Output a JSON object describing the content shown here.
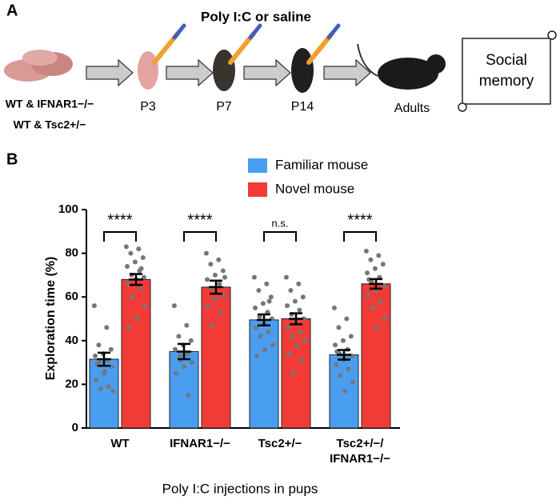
{
  "panel_a": {
    "label": "A",
    "title": "Poly I:C or saline",
    "genotypes": [
      "WT & IFNAR1−/−",
      "WT & Tsc2+/−"
    ],
    "stages": [
      "P3",
      "P7",
      "P14",
      "Adults"
    ],
    "outcome": "Social memory"
  },
  "chart_data": {
    "type": "bar",
    "panel_label": "B",
    "ylabel": "Exploration time (%)",
    "xlabel": "Poly I:C injections in pups",
    "categories": [
      "WT",
      "IFNAR1−/−",
      "Tsc2+/−",
      "Tsc2+/−/\nIFNAR1−/−"
    ],
    "significance": [
      "****",
      "****",
      "n.s.",
      "****"
    ],
    "ylim": [
      0,
      100
    ],
    "yticks": [
      0,
      20,
      40,
      60,
      80,
      100
    ],
    "grid": false,
    "legend": "top-right",
    "series": [
      {
        "name": "Familiar mouse",
        "color": "#4a9ef2",
        "values": [
          31.5,
          35,
          49.5,
          33.5
        ],
        "errors": [
          3,
          3.5,
          2.5,
          2.2
        ],
        "points": [
          [
            56,
            46,
            38,
            36,
            34,
            33,
            31,
            30,
            28,
            25,
            22,
            19,
            18,
            17,
            26,
            29
          ],
          [
            56,
            47,
            42,
            40,
            38,
            36,
            34,
            33,
            30,
            28,
            25,
            15,
            31
          ],
          [
            69,
            66,
            63,
            60,
            57,
            55,
            53,
            51,
            50,
            48,
            46,
            44,
            42,
            38,
            36,
            33,
            58
          ],
          [
            55,
            50,
            46,
            42,
            40,
            38,
            36,
            34,
            33,
            31,
            29,
            27,
            24,
            21,
            17,
            35
          ]
        ]
      },
      {
        "name": "Novel mouse",
        "color": "#f23a36",
        "values": [
          68,
          64.5,
          50,
          66
        ],
        "errors": [
          2.5,
          3,
          2.5,
          2.2
        ],
        "points": [
          [
            83,
            82,
            80,
            78,
            76,
            74,
            72,
            70,
            69,
            68,
            66,
            64,
            60,
            56,
            50,
            46,
            73
          ],
          [
            80,
            77,
            75,
            72,
            70,
            68,
            66,
            64,
            61,
            59,
            56,
            53,
            47,
            69
          ],
          [
            69,
            66,
            63,
            60,
            58,
            56,
            54,
            52,
            50,
            48,
            46,
            44,
            42,
            40,
            38,
            34,
            31,
            25
          ],
          [
            81,
            79,
            77,
            75,
            73,
            71,
            69,
            67,
            65,
            63,
            61,
            58,
            55,
            50,
            46,
            68
          ]
        ]
      }
    ]
  }
}
